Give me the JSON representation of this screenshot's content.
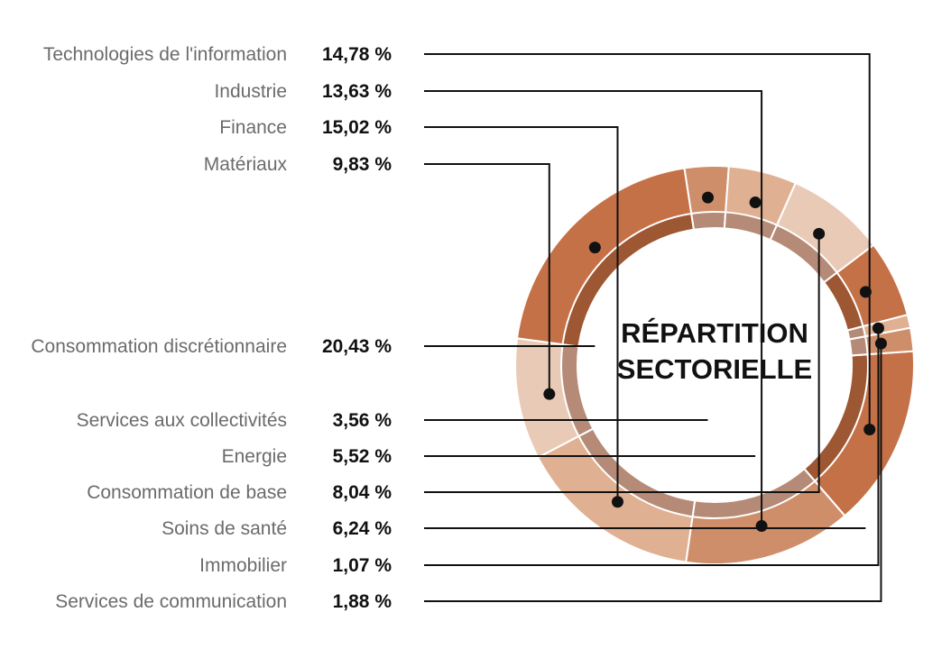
{
  "chart_data": {
    "type": "pie",
    "title": "RÉPARTITION SECTORIELLE",
    "title_lines": [
      "RÉPARTITION",
      "SECTORIELLE"
    ],
    "slices": [
      {
        "label": "Technologies de l'information",
        "value": 14.78,
        "value_text": "14,78 %",
        "color": "#c47147"
      },
      {
        "label": "Industrie",
        "value": 13.63,
        "value_text": "13,63 %",
        "color": "#cf8e6a"
      },
      {
        "label": "Finance",
        "value": 15.02,
        "value_text": "15,02 %",
        "color": "#e0b092"
      },
      {
        "label": "Matériaux",
        "value": 9.83,
        "value_text": "9,83 %",
        "color": "#e9cab6"
      },
      {
        "label": "Consommation discrétionnaire",
        "value": 20.43,
        "value_text": "20,43 %",
        "color": "#c47147"
      },
      {
        "label": "Services aux collectivités",
        "value": 3.56,
        "value_text": "3,56 %",
        "color": "#cf8e6a"
      },
      {
        "label": "Energie",
        "value": 5.52,
        "value_text": "5,52 %",
        "color": "#e0b092"
      },
      {
        "label": "Consommation de base",
        "value": 8.04,
        "value_text": "8,04 %",
        "color": "#e9cab6"
      },
      {
        "label": "Soins de santé",
        "value": 6.24,
        "value_text": "6,24 %",
        "color": "#c47147"
      },
      {
        "label": "Immobilier",
        "value": 1.07,
        "value_text": "1,07 %",
        "color": "#e0b092"
      },
      {
        "label": "Services de communication",
        "value": 1.88,
        "value_text": "1,88 %",
        "color": "#cf8e6a"
      }
    ],
    "legend_placement": "left",
    "colors": {
      "inner_ring": "#b58b77",
      "inner_ring_dark": "#9d5733",
      "text": "#111111",
      "label": "#6b6b6b"
    }
  }
}
